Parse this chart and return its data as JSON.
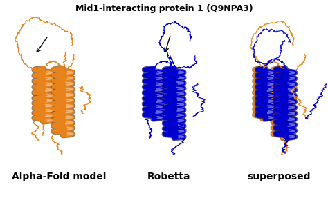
{
  "title": "Mid1-interacting protein 1 (Q9NPA3)",
  "title_fontsize": 9,
  "title_fontweight": "bold",
  "labels": [
    "Alpha-Fold model",
    "Robetta",
    "superposed"
  ],
  "label_fontsize": 10,
  "label_fontweight": "bold",
  "bg_color": "#ffffff",
  "orange_color": "#E8821A",
  "blue_color": "#0000CC",
  "figsize": [
    4.74,
    2.87
  ],
  "dpi": 100
}
